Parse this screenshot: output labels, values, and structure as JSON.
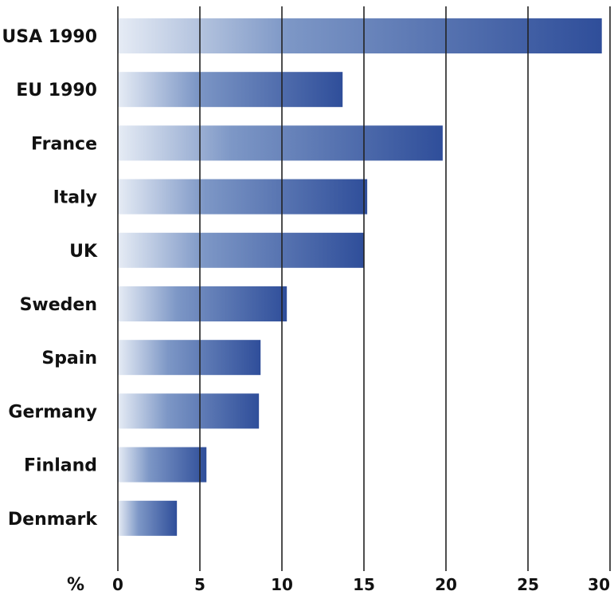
{
  "chart_data": {
    "type": "bar",
    "orientation": "horizontal",
    "title": "",
    "xlabel": "%",
    "ylabel": "",
    "categories": [
      "USA 1990",
      "EU 1990",
      "France",
      "Italy",
      "UK",
      "Sweden",
      "Spain",
      "Germany",
      "Finland",
      "Denmark"
    ],
    "values": [
      29.5,
      13.7,
      19.8,
      15.2,
      15.0,
      10.3,
      8.7,
      8.6,
      5.4,
      3.6
    ],
    "xlim": [
      0,
      30
    ],
    "xticks": [
      0,
      5,
      10,
      15,
      20,
      25,
      30
    ],
    "grid": true,
    "legend": "none",
    "colors": {
      "bar_dark": "#2f4e9a",
      "bar_light": "#e6ecf5",
      "grid": "#222222"
    }
  }
}
